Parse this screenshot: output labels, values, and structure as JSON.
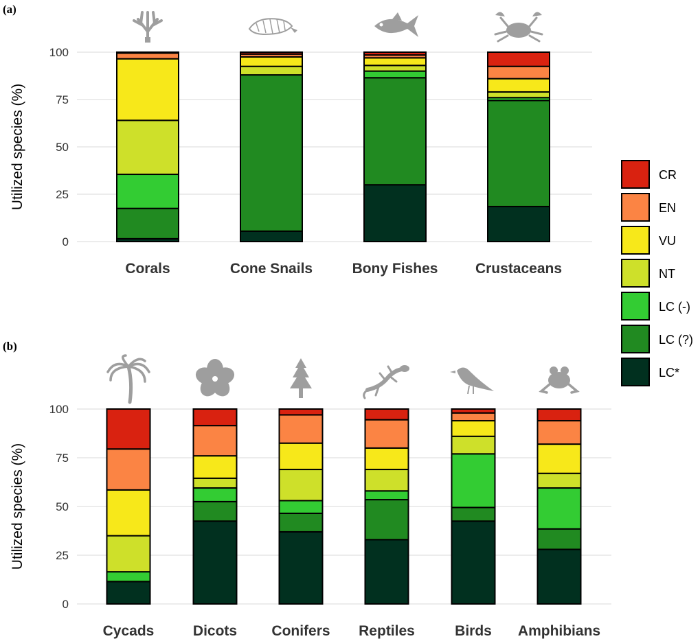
{
  "chart_data": [
    {
      "type": "bar",
      "stacked": true,
      "panel_label": "(a)",
      "ylabel": "Utilized species (%)",
      "ylim": [
        0,
        100
      ],
      "yticks": [
        "0",
        "25",
        "50",
        "75",
        "100"
      ],
      "grid": true,
      "categories": [
        "Corals",
        "Cone Snails",
        "Bony Fishes",
        "Crustaceans"
      ],
      "icons": [
        "coral-icon",
        "cone-snail-icon",
        "fish-icon",
        "crab-icon"
      ],
      "series": [
        {
          "name": "LC*",
          "values": [
            1.5,
            5.5,
            30,
            18.5
          ]
        },
        {
          "name": "LC (?)",
          "values": [
            16,
            82.5,
            56.5,
            56
          ]
        },
        {
          "name": "LC (-)",
          "values": [
            18,
            0,
            3.5,
            1.5
          ]
        },
        {
          "name": "NT",
          "values": [
            28.5,
            4.5,
            3,
            3
          ]
        },
        {
          "name": "VU",
          "values": [
            32.5,
            5,
            4,
            7
          ]
        },
        {
          "name": "EN",
          "values": [
            3,
            1.5,
            1.5,
            6.5
          ]
        },
        {
          "name": "CR",
          "values": [
            0.5,
            1,
            1.5,
            7.5
          ]
        }
      ]
    },
    {
      "type": "bar",
      "stacked": true,
      "panel_label": "(b)",
      "ylabel": "Utilized species (%)",
      "ylim": [
        0,
        100
      ],
      "yticks": [
        "0",
        "25",
        "50",
        "75",
        "100"
      ],
      "grid": true,
      "categories": [
        "Cycads",
        "Dicots",
        "Conifers",
        "Reptiles",
        "Birds",
        "Amphibians"
      ],
      "icons": [
        "palm-icon",
        "hibiscus-icon",
        "conifer-tree-icon",
        "gecko-icon",
        "bird-icon",
        "frog-icon"
      ],
      "series": [
        {
          "name": "LC*",
          "values": [
            11.5,
            42.5,
            37,
            33,
            42.5,
            28
          ]
        },
        {
          "name": "LC (?)",
          "values": [
            0,
            10,
            9.5,
            20.5,
            7,
            10.5
          ]
        },
        {
          "name": "LC (-)",
          "values": [
            5,
            7,
            6.5,
            4.5,
            27.5,
            21
          ]
        },
        {
          "name": "NT",
          "values": [
            18.5,
            5,
            16,
            11,
            9,
            7.5
          ]
        },
        {
          "name": "VU",
          "values": [
            23.5,
            11.5,
            13.5,
            11,
            8,
            15
          ]
        },
        {
          "name": "EN",
          "values": [
            21,
            15.5,
            14.5,
            14.5,
            4,
            12
          ]
        },
        {
          "name": "CR",
          "values": [
            20.5,
            8.5,
            3,
            5.5,
            2,
            6
          ]
        }
      ]
    }
  ],
  "legend": {
    "placement": "right",
    "items": [
      {
        "label": "CR",
        "color": "#D92210"
      },
      {
        "label": "EN",
        "color": "#FB8444"
      },
      {
        "label": "VU",
        "color": "#F7E81A"
      },
      {
        "label": "NT",
        "color": "#CEE02A"
      },
      {
        "label": "LC (-)",
        "color": "#33CC33"
      },
      {
        "label": "LC (?)",
        "color": "#218A21"
      },
      {
        "label": "LC*",
        "color": "#01301F"
      }
    ]
  },
  "colors": {
    "icon": "#9E9E9E",
    "grid": "#E6E6E6",
    "bar_outline": "#000000"
  }
}
